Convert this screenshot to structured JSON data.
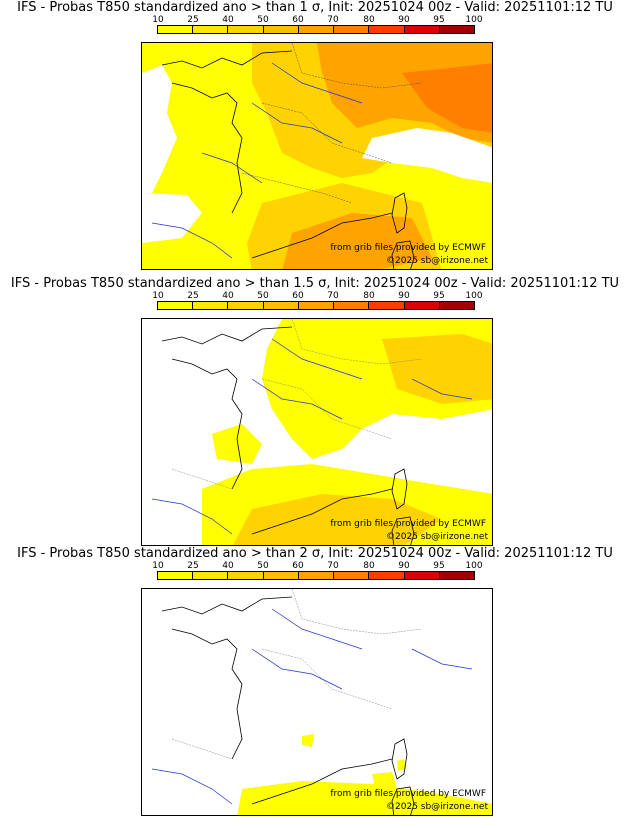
{
  "colorbar": {
    "labels": [
      "10",
      "25",
      "40",
      "50",
      "60",
      "70",
      "80",
      "90",
      "95",
      "100"
    ],
    "colors": [
      "#ffff00",
      "#ffe800",
      "#ffd200",
      "#ffbe00",
      "#ffa300",
      "#ff8000",
      "#ff3c00",
      "#dd0000",
      "#a00000",
      "#600000"
    ]
  },
  "panels": [
    {
      "title": "IFS - Probas T850  standardized ano > than 1 σ, Init: 20251024 00z - Valid: 20251101:12 TU",
      "source_credit": "from grib files provided by ECMWF",
      "copyright": "©2025 sb@irizone.net"
    },
    {
      "title": "IFS - Probas T850  standardized ano > than 1.5 σ, Init: 20251024 00z - Valid: 20251101:12 TU",
      "source_credit": "from grib files provided by ECMWF",
      "copyright": "©2025 sb@irizone.net"
    },
    {
      "title": "IFS - Probas T850  standardized ano > than 2 σ, Init: 20251024 00z - Valid: 20251101:12 TU",
      "source_credit": "from grib files provided by ECMWF",
      "copyright": "©2025 sb@irizone.net"
    }
  ]
}
